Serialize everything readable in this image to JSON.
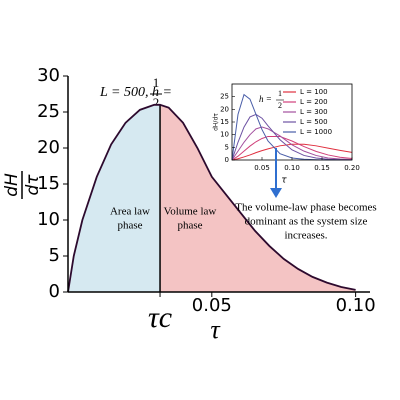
{
  "chart_data": [
    {
      "type": "area",
      "xlabel": "τ",
      "ylabel": {
        "numerator": "dH",
        "denominator": "dτ"
      },
      "annotation": {
        "text": "L = 500,  h =",
        "fraction": [
          "1",
          "2"
        ]
      },
      "x": [
        0,
        0.002,
        0.005,
        0.01,
        0.015,
        0.02,
        0.025,
        0.03,
        0.032,
        0.035,
        0.04,
        0.045,
        0.05,
        0.055,
        0.06,
        0.065,
        0.07,
        0.075,
        0.08,
        0.085,
        0.09,
        0.095,
        0.1
      ],
      "values": [
        0,
        5,
        10,
        16,
        20.5,
        23.5,
        25.3,
        26,
        26,
        25.6,
        23.5,
        20,
        16,
        13.5,
        11,
        8.5,
        6.4,
        4.6,
        3.2,
        2.1,
        1.3,
        0.7,
        0.3
      ],
      "color": "#2d0a2e",
      "regions": [
        {
          "label": [
            "Area law",
            "phase"
          ],
          "color": "#d6e9f1",
          "from": 0,
          "to": 0.032
        },
        {
          "label": [
            "Volume law",
            "phase"
          ],
          "color": "#f4c4c4",
          "from": 0.032,
          "to": 0.1
        }
      ],
      "xlim": [
        0,
        0.105
      ],
      "ylim": [
        0,
        30
      ],
      "xticks": [
        {
          "value": 0.032,
          "label": "τc"
        },
        0.05,
        {
          "value": 0.1,
          "label": "0.10"
        }
      ],
      "yticks": [
        0,
        5,
        10,
        15,
        20,
        25,
        30
      ]
    },
    {
      "type": "line",
      "title": {
        "text": "h =",
        "fraction": [
          "1",
          "2"
        ]
      },
      "xlabel": "τ",
      "ylabel": "dH/dτ",
      "x": [
        0,
        0.01,
        0.02,
        0.03,
        0.04,
        0.05,
        0.06,
        0.08,
        0.1,
        0.12,
        0.14,
        0.16,
        0.18,
        0.2
      ],
      "series": [
        {
          "name": "L = 100",
          "color": "#e0303f",
          "values": [
            0,
            0.5,
            1.2,
            2,
            2.9,
            3.7,
            4.4,
            5.6,
            6.2,
            6.2,
            5.6,
            4.7,
            3.8,
            3
          ]
        },
        {
          "name": "L = 200",
          "color": "#d0407a",
          "values": [
            0,
            1.5,
            3.5,
            5.5,
            7.2,
            8.5,
            9.3,
            9.3,
            7.5,
            5.3,
            3.4,
            2,
            1.1,
            0.6
          ]
        },
        {
          "name": "L = 300",
          "color": "#a24f9e",
          "values": [
            0,
            3.5,
            7,
            10,
            12.3,
            13,
            12.3,
            9.5,
            6,
            3.5,
            1.8,
            0.8,
            0.4,
            0.2
          ]
        },
        {
          "name": "L = 500",
          "color": "#6d52a3",
          "values": [
            0,
            7,
            13,
            17,
            18,
            16.5,
            13.5,
            8,
            4,
            1.8,
            0.8,
            0.3,
            0.1,
            0
          ]
        },
        {
          "name": "L = 1000",
          "color": "#4a5ea8",
          "values": [
            0,
            18,
            25.8,
            24,
            18,
            12,
            7.5,
            2.5,
            0.8,
            0.3,
            0.1,
            0,
            0,
            0
          ]
        }
      ],
      "xlim": [
        0,
        0.2
      ],
      "ylim": [
        0,
        30
      ],
      "xticks": [
        0.05,
        {
          "value": 0.1,
          "label": "0.10"
        },
        0.15,
        {
          "value": 0.2,
          "label": "0.20"
        }
      ],
      "yticks": [
        0,
        5,
        10,
        15,
        20,
        25
      ],
      "annotation_lines": [
        "The volume-law phase becomes",
        "dominant as the system size",
        "increases."
      ],
      "arrow_color": "#2f6fd0"
    }
  ]
}
